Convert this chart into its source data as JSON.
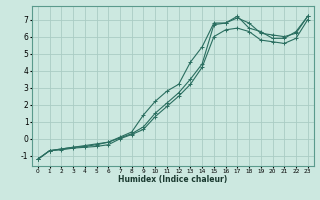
{
  "xlabel": "Humidex (Indice chaleur)",
  "ylabel": "",
  "bg_color": "#cce8e0",
  "grid_color": "#aaccc4",
  "line_color": "#2a6e60",
  "xlim": [
    -0.5,
    23.5
  ],
  "ylim": [
    -1.6,
    7.8
  ],
  "xticks": [
    0,
    1,
    2,
    3,
    4,
    5,
    6,
    7,
    8,
    9,
    10,
    11,
    12,
    13,
    14,
    15,
    16,
    17,
    18,
    19,
    20,
    21,
    22,
    23
  ],
  "yticks": [
    -1,
    0,
    1,
    2,
    3,
    4,
    5,
    6,
    7
  ],
  "series": [
    {
      "x": [
        0,
        1,
        2,
        3,
        4,
        5,
        6,
        7,
        8,
        9,
        10,
        11,
        12,
        13,
        14,
        15,
        16,
        17,
        18,
        19,
        20,
        21,
        22,
        23
      ],
      "y": [
        -1.2,
        -0.7,
        -0.65,
        -0.55,
        -0.5,
        -0.45,
        -0.35,
        0.0,
        0.25,
        0.55,
        1.3,
        1.9,
        2.5,
        3.2,
        4.2,
        6.0,
        6.4,
        6.5,
        6.3,
        5.8,
        5.7,
        5.6,
        5.9,
        7.0
      ]
    },
    {
      "x": [
        0,
        1,
        2,
        3,
        4,
        5,
        6,
        7,
        8,
        9,
        10,
        11,
        12,
        13,
        14,
        15,
        16,
        17,
        18,
        19,
        20,
        21,
        22,
        23
      ],
      "y": [
        -1.2,
        -0.7,
        -0.6,
        -0.5,
        -0.45,
        -0.35,
        -0.2,
        0.05,
        0.3,
        0.7,
        1.5,
        2.1,
        2.7,
        3.5,
        4.4,
        6.7,
        6.8,
        7.1,
        6.8,
        6.2,
        6.1,
        6.0,
        6.2,
        7.2
      ]
    },
    {
      "x": [
        0,
        1,
        2,
        3,
        4,
        5,
        6,
        7,
        8,
        9,
        10,
        11,
        12,
        13,
        14,
        15,
        16,
        17,
        18,
        19,
        20,
        21,
        22,
        23
      ],
      "y": [
        -1.2,
        -0.7,
        -0.6,
        -0.5,
        -0.4,
        -0.3,
        -0.2,
        0.1,
        0.4,
        1.4,
        2.2,
        2.8,
        3.2,
        4.5,
        5.4,
        6.8,
        6.8,
        7.2,
        6.5,
        6.3,
        5.9,
        5.9,
        6.3,
        7.2
      ]
    }
  ]
}
